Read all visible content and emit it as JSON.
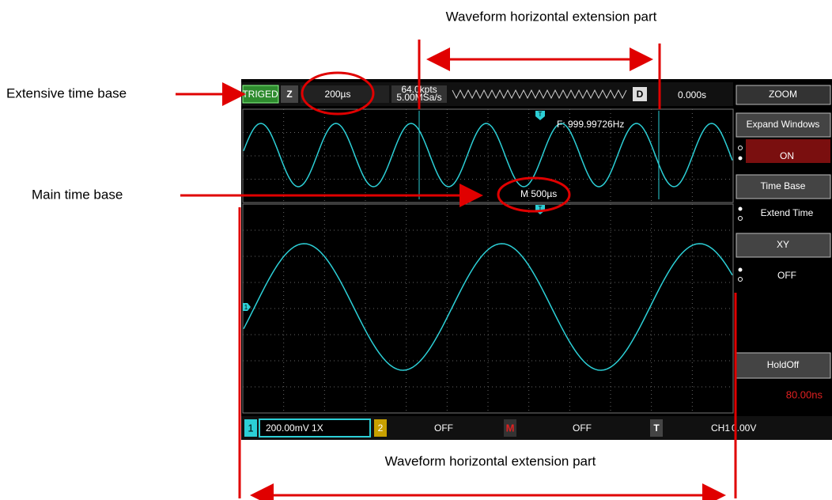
{
  "annotations": {
    "top_label": "Waveform horizontal extension part",
    "extensive_time_base": "Extensive time base",
    "main_time_base": "Main time base",
    "bottom_label": "Waveform horizontal extension part"
  },
  "top_bar": {
    "status": "TRIGED",
    "zoom_icon": "Z",
    "time_base": "200µs",
    "memory_depth": "64.0kpts",
    "sample_rate": "5.00MSa/s",
    "delay_icon": "D",
    "delay": "0.000s",
    "menu_title": "ZOOM"
  },
  "upper_window": {
    "frequency": "F: 999.99726Hz",
    "main_time_base": "M 500µs",
    "trigger_marker": "T"
  },
  "main_window": {
    "trigger_marker": "T",
    "channel_marker": "1"
  },
  "menu": {
    "items": [
      {
        "label": "Expand Windows",
        "value": "ON"
      },
      {
        "label": "Time Base",
        "value": "Extend Time"
      },
      {
        "label": "XY",
        "value": "OFF"
      },
      {
        "label": "HoldOff",
        "value": "80.00ns"
      }
    ]
  },
  "bottom_bar": {
    "ch1_badge": "1",
    "ch1_setting": "200.00mV 1X",
    "ch2_badge": "2",
    "ch2_setting": "OFF",
    "math_badge": "M",
    "math_setting": "OFF",
    "trigger_badge": "T",
    "trigger_source": "CH1",
    "trigger_level": "0.00V"
  }
}
